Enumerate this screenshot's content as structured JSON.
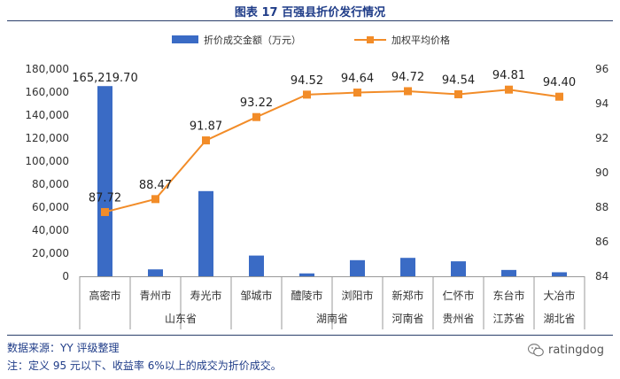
{
  "title": "图表 17 百强县折价发行情况",
  "chart_data": {
    "type": "bar",
    "categories": [
      "高密市",
      "青州市",
      "寿光市",
      "邹城市",
      "醴陵市",
      "浏阳市",
      "新郑市",
      "仁怀市",
      "东台市",
      "大冶市"
    ],
    "groups": [
      {
        "name": "山东省",
        "span": [
          0,
          3
        ]
      },
      {
        "name": "湖南省",
        "span": [
          4,
          5
        ]
      },
      {
        "name": "河南省",
        "span": [
          6,
          6
        ]
      },
      {
        "name": "贵州省",
        "span": [
          7,
          7
        ]
      },
      {
        "name": "江苏省",
        "span": [
          8,
          8
        ]
      },
      {
        "name": "湖北省",
        "span": [
          9,
          9
        ]
      }
    ],
    "series": [
      {
        "name": "折价成交金额（万元）",
        "type": "bar",
        "axis": "left",
        "color": "#3a6bc5",
        "values": [
          165219.7,
          6000,
          74000,
          18000,
          2500,
          14000,
          16000,
          13000,
          5500,
          3500
        ]
      },
      {
        "name": "加权平均价格",
        "type": "line",
        "axis": "right",
        "color": "#f28c28",
        "values": [
          87.72,
          88.47,
          91.87,
          93.22,
          94.52,
          94.64,
          94.72,
          94.54,
          94.81,
          94.4
        ],
        "labels": [
          "87.72",
          "88.47",
          "91.87",
          "93.22",
          "94.52",
          "94.64",
          "94.72",
          "94.54",
          "94.81",
          "94.40"
        ]
      }
    ],
    "bar_labels": {
      "0": "165,219.70"
    },
    "yleft": {
      "min": 0,
      "max": 180000,
      "ticks": [
        "0",
        "20,000",
        "40,000",
        "60,000",
        "80,000",
        "100,000",
        "120,000",
        "140,000",
        "160,000",
        "180,000"
      ]
    },
    "yright": {
      "min": 84,
      "max": 96,
      "ticks": [
        "84",
        "86",
        "88",
        "90",
        "92",
        "94",
        "96"
      ]
    },
    "legend_position": "top"
  },
  "footer": {
    "source": "数据来源：YY 评级整理",
    "note": "注：定义 95 元以下、收益率 6%以上的成交为折价成交。"
  },
  "watermark": "ratingdog"
}
